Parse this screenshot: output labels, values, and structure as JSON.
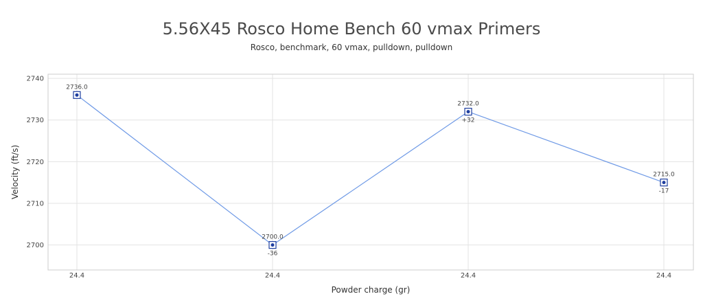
{
  "chart_data": {
    "type": "line",
    "title": "5.56X45 Rosco Home Bench 60 vmax Primers",
    "subtitle": "Rosco, benchmark, 60 vmax, pulldown, pulldown",
    "xlabel": "Powder charge (gr)",
    "ylabel": "Velocity (ft/s)",
    "categories": [
      "24.4",
      "24.4",
      "24.4",
      "24.4"
    ],
    "values": [
      2736.0,
      2700.0,
      2732.0,
      2715.0
    ],
    "value_labels": [
      "2736.0",
      "2700.0",
      "2732.0",
      "2715.0"
    ],
    "delta_labels": [
      "",
      "-36",
      "+32",
      "-17"
    ],
    "ylim": [
      2694,
      2741
    ],
    "yticks": [
      2700,
      2710,
      2720,
      2730,
      2740
    ],
    "grid": true,
    "line_color": "#6f9ae6",
    "marker_color": "#1f3fa0"
  }
}
